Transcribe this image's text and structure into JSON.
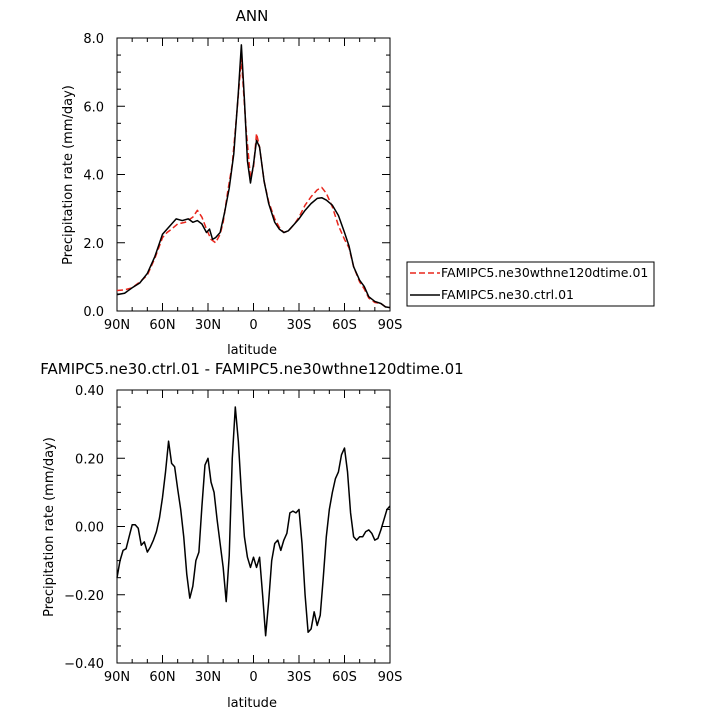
{
  "chart_data": [
    {
      "type": "line",
      "title": "ANN",
      "xlabel": "latitude",
      "ylabel": "Precipitation rate (mm/day)",
      "xlim": [
        90,
        -90
      ],
      "ylim": [
        0,
        8
      ],
      "xticks": [
        90,
        60,
        30,
        0,
        -30,
        -60,
        -90
      ],
      "xticklabels": [
        "90N",
        "60N",
        "30N",
        "0",
        "30S",
        "60S",
        "90S"
      ],
      "yticks": [
        0,
        2,
        4,
        6,
        8
      ],
      "yticklabels": [
        "0.0",
        "2.0",
        "4.0",
        "6.0",
        "8.0"
      ],
      "legend_position": "right",
      "series": [
        {
          "name": "FAMIPC5.ne30wthne120dtime.01",
          "color": "#e8261c",
          "dash": "dashed",
          "points": [
            [
              90,
              0.6
            ],
            [
              85,
              0.62
            ],
            [
              80,
              0.68
            ],
            [
              75,
              0.85
            ],
            [
              70,
              1.05
            ],
            [
              65,
              1.55
            ],
            [
              60,
              2.15
            ],
            [
              57,
              2.3
            ],
            [
              54,
              2.4
            ],
            [
              50,
              2.55
            ],
            [
              45,
              2.6
            ],
            [
              40,
              2.75
            ],
            [
              37,
              2.95
            ],
            [
              34,
              2.75
            ],
            [
              31,
              2.4
            ],
            [
              28,
              2.1
            ],
            [
              25,
              2.0
            ],
            [
              22,
              2.25
            ],
            [
              20,
              2.6
            ],
            [
              17,
              3.5
            ],
            [
              14,
              4.3
            ],
            [
              11,
              5.8
            ],
            [
              8,
              7.4
            ],
            [
              5,
              5.4
            ],
            [
              2,
              3.9
            ],
            [
              0,
              4.2
            ],
            [
              -2,
              5.2
            ],
            [
              -4,
              4.8
            ],
            [
              -7,
              3.8
            ],
            [
              -10,
              3.2
            ],
            [
              -14,
              2.7
            ],
            [
              -17,
              2.45
            ],
            [
              -20,
              2.3
            ],
            [
              -23,
              2.35
            ],
            [
              -27,
              2.55
            ],
            [
              -30,
              2.75
            ],
            [
              -34,
              3.1
            ],
            [
              -38,
              3.35
            ],
            [
              -42,
              3.55
            ],
            [
              -45,
              3.62
            ],
            [
              -48,
              3.45
            ],
            [
              -52,
              3.05
            ],
            [
              -56,
              2.5
            ],
            [
              -60,
              2.1
            ],
            [
              -63,
              1.85
            ],
            [
              -66,
              1.3
            ],
            [
              -70,
              0.85
            ],
            [
              -73,
              0.65
            ],
            [
              -76,
              0.38
            ],
            [
              -80,
              0.25
            ],
            [
              -84,
              0.22
            ],
            [
              -87,
              0.12
            ],
            [
              -90,
              0.1
            ]
          ]
        },
        {
          "name": "FAMIPC5.ne30.ctrl.01",
          "color": "#000000",
          "dash": "solid",
          "points": [
            [
              90,
              0.48
            ],
            [
              85,
              0.52
            ],
            [
              80,
              0.68
            ],
            [
              75,
              0.82
            ],
            [
              70,
              1.1
            ],
            [
              65,
              1.6
            ],
            [
              60,
              2.25
            ],
            [
              57,
              2.4
            ],
            [
              54,
              2.55
            ],
            [
              51,
              2.7
            ],
            [
              47,
              2.65
            ],
            [
              43,
              2.7
            ],
            [
              40,
              2.6
            ],
            [
              37,
              2.65
            ],
            [
              34,
              2.55
            ],
            [
              31,
              2.3
            ],
            [
              29,
              2.4
            ],
            [
              27,
              2.1
            ],
            [
              25,
              2.15
            ],
            [
              22,
              2.3
            ],
            [
              19,
              2.9
            ],
            [
              16,
              3.6
            ],
            [
              13,
              4.6
            ],
            [
              10,
              6.4
            ],
            [
              8,
              7.8
            ],
            [
              6,
              6.2
            ],
            [
              4,
              4.4
            ],
            [
              2,
              3.75
            ],
            [
              0,
              4.3
            ],
            [
              -2,
              5.0
            ],
            [
              -4,
              4.8
            ],
            [
              -7,
              3.8
            ],
            [
              -10,
              3.15
            ],
            [
              -14,
              2.6
            ],
            [
              -17,
              2.4
            ],
            [
              -20,
              2.3
            ],
            [
              -23,
              2.35
            ],
            [
              -27,
              2.55
            ],
            [
              -30,
              2.7
            ],
            [
              -34,
              2.95
            ],
            [
              -38,
              3.15
            ],
            [
              -42,
              3.3
            ],
            [
              -45,
              3.32
            ],
            [
              -48,
              3.25
            ],
            [
              -52,
              3.1
            ],
            [
              -56,
              2.8
            ],
            [
              -60,
              2.3
            ],
            [
              -63,
              1.9
            ],
            [
              -66,
              1.3
            ],
            [
              -70,
              0.9
            ],
            [
              -73,
              0.72
            ],
            [
              -76,
              0.42
            ],
            [
              -80,
              0.28
            ],
            [
              -84,
              0.22
            ],
            [
              -87,
              0.12
            ],
            [
              -90,
              0.1
            ]
          ]
        }
      ]
    },
    {
      "type": "line",
      "title": "FAMIPC5.ne30.ctrl.01 - FAMIPC5.ne30wthne120dtime.01",
      "xlabel": "latitude",
      "ylabel": "Precipitation rate (mm/day)",
      "xlim": [
        90,
        -90
      ],
      "ylim": [
        -0.4,
        0.4
      ],
      "xticks": [
        90,
        60,
        30,
        0,
        -30,
        -60,
        -90
      ],
      "xticklabels": [
        "90N",
        "60N",
        "30N",
        "0",
        "30S",
        "60S",
        "90S"
      ],
      "yticks": [
        -0.4,
        -0.2,
        0,
        0.2,
        0.4
      ],
      "yticklabels": [
        "−0.40",
        "−0.20",
        "0.00",
        "0.20",
        "0.40"
      ],
      "series": [
        {
          "color": "#000000",
          "dash": "solid",
          "points": [
            [
              90,
              -0.15
            ],
            [
              88,
              -0.1
            ],
            [
              86,
              -0.07
            ],
            [
              84,
              -0.065
            ],
            [
              82,
              -0.03
            ],
            [
              80,
              0.005
            ],
            [
              78,
              0.005
            ],
            [
              76,
              -0.005
            ],
            [
              74,
              -0.055
            ],
            [
              72,
              -0.045
            ],
            [
              70,
              -0.075
            ],
            [
              68,
              -0.06
            ],
            [
              66,
              -0.04
            ],
            [
              64,
              -0.015
            ],
            [
              62,
              0.025
            ],
            [
              60,
              0.085
            ],
            [
              58,
              0.16
            ],
            [
              56,
              0.25
            ],
            [
              54,
              0.185
            ],
            [
              52,
              0.175
            ],
            [
              50,
              0.11
            ],
            [
              48,
              0.05
            ],
            [
              46,
              -0.03
            ],
            [
              44,
              -0.14
            ],
            [
              42,
              -0.21
            ],
            [
              40,
              -0.175
            ],
            [
              38,
              -0.1
            ],
            [
              36,
              -0.075
            ],
            [
              34,
              0.06
            ],
            [
              32,
              0.18
            ],
            [
              30,
              0.2
            ],
            [
              28,
              0.13
            ],
            [
              26,
              0.1
            ],
            [
              24,
              0.02
            ],
            [
              22,
              -0.05
            ],
            [
              20,
              -0.12
            ],
            [
              18,
              -0.22
            ],
            [
              16,
              -0.085
            ],
            [
              14,
              0.2
            ],
            [
              12,
              0.35
            ],
            [
              10,
              0.25
            ],
            [
              8,
              0.1
            ],
            [
              6,
              -0.03
            ],
            [
              4,
              -0.09
            ],
            [
              2,
              -0.12
            ],
            [
              0,
              -0.09
            ],
            [
              -2,
              -0.12
            ],
            [
              -4,
              -0.09
            ],
            [
              -6,
              -0.2
            ],
            [
              -8,
              -0.32
            ],
            [
              -10,
              -0.22
            ],
            [
              -12,
              -0.1
            ],
            [
              -14,
              -0.05
            ],
            [
              -16,
              -0.04
            ],
            [
              -18,
              -0.07
            ],
            [
              -20,
              -0.04
            ],
            [
              -22,
              -0.02
            ],
            [
              -24,
              0.04
            ],
            [
              -26,
              0.045
            ],
            [
              -28,
              0.04
            ],
            [
              -30,
              0.05
            ],
            [
              -32,
              -0.05
            ],
            [
              -34,
              -0.2
            ],
            [
              -36,
              -0.31
            ],
            [
              -38,
              -0.3
            ],
            [
              -40,
              -0.25
            ],
            [
              -42,
              -0.29
            ],
            [
              -44,
              -0.26
            ],
            [
              -46,
              -0.15
            ],
            [
              -48,
              -0.03
            ],
            [
              -50,
              0.05
            ],
            [
              -52,
              0.1
            ],
            [
              -54,
              0.14
            ],
            [
              -56,
              0.16
            ],
            [
              -58,
              0.21
            ],
            [
              -60,
              0.23
            ],
            [
              -62,
              0.16
            ],
            [
              -64,
              0.04
            ],
            [
              -66,
              -0.03
            ],
            [
              -68,
              -0.04
            ],
            [
              -70,
              -0.03
            ],
            [
              -72,
              -0.03
            ],
            [
              -74,
              -0.015
            ],
            [
              -76,
              -0.01
            ],
            [
              -78,
              -0.02
            ],
            [
              -80,
              -0.04
            ],
            [
              -82,
              -0.035
            ],
            [
              -84,
              -0.01
            ],
            [
              -86,
              0.02
            ],
            [
              -88,
              0.05
            ],
            [
              -90,
              0.06
            ]
          ]
        }
      ]
    }
  ]
}
